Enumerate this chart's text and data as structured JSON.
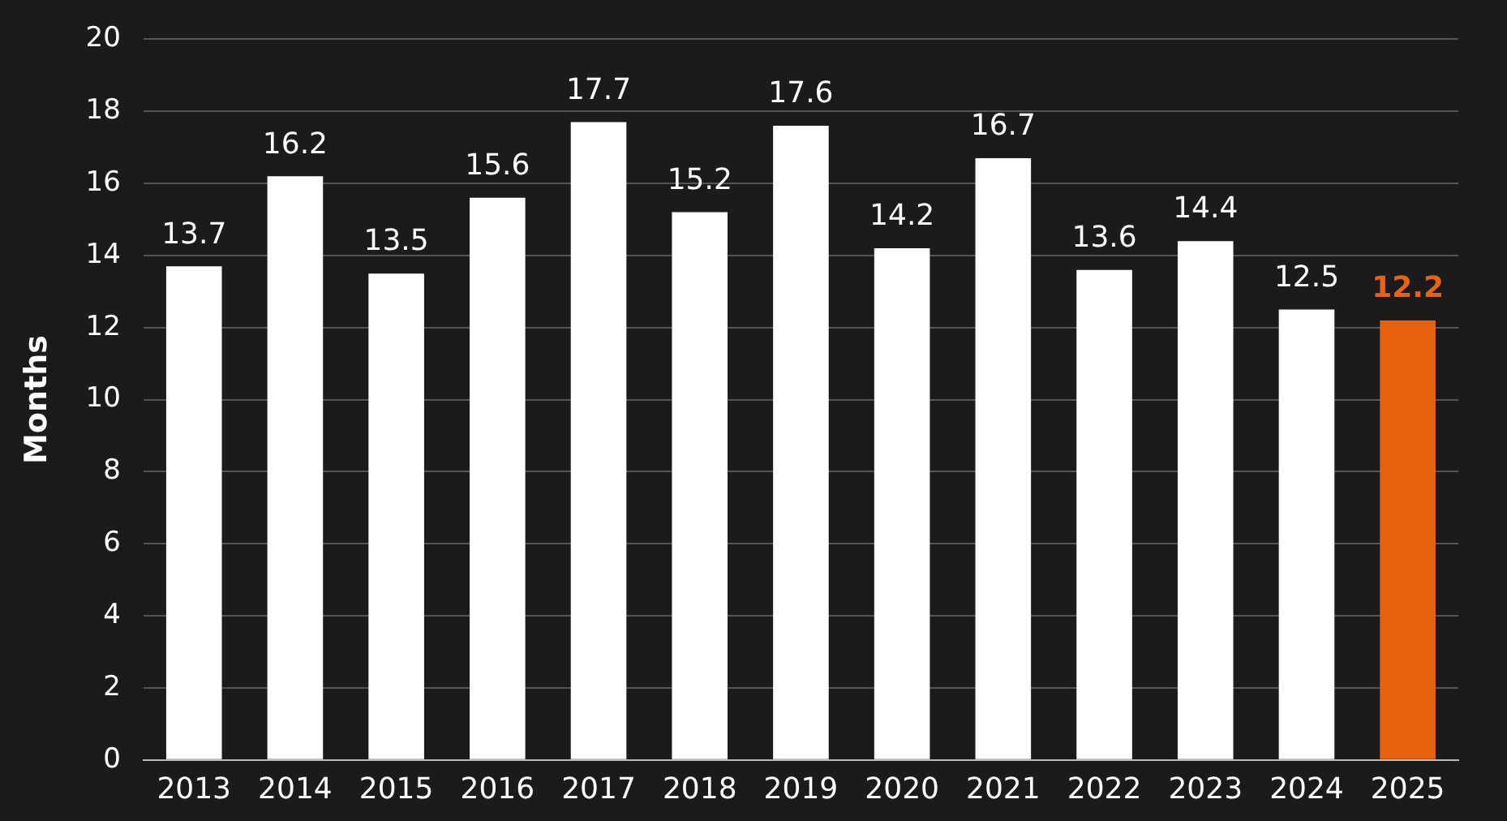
{
  "chart_data": {
    "type": "bar",
    "ylabel": "Months",
    "categories": [
      "2013",
      "2014",
      "2015",
      "2016",
      "2017",
      "2018",
      "2019",
      "2020",
      "2021",
      "2022",
      "2023",
      "2024",
      "2025"
    ],
    "values": [
      13.7,
      16.2,
      13.5,
      15.6,
      17.7,
      15.2,
      17.6,
      14.2,
      16.7,
      13.6,
      14.4,
      12.5,
      12.2
    ],
    "colors": [
      "#ffffff",
      "#ffffff",
      "#ffffff",
      "#ffffff",
      "#ffffff",
      "#ffffff",
      "#ffffff",
      "#ffffff",
      "#ffffff",
      "#ffffff",
      "#ffffff",
      "#ffffff",
      "#e8620f"
    ],
    "ylim": [
      0,
      20
    ],
    "yticks": [
      0,
      2,
      4,
      6,
      8,
      10,
      12,
      14,
      16,
      18,
      20
    ],
    "grid": "y",
    "data_labels": true,
    "legend": false
  }
}
